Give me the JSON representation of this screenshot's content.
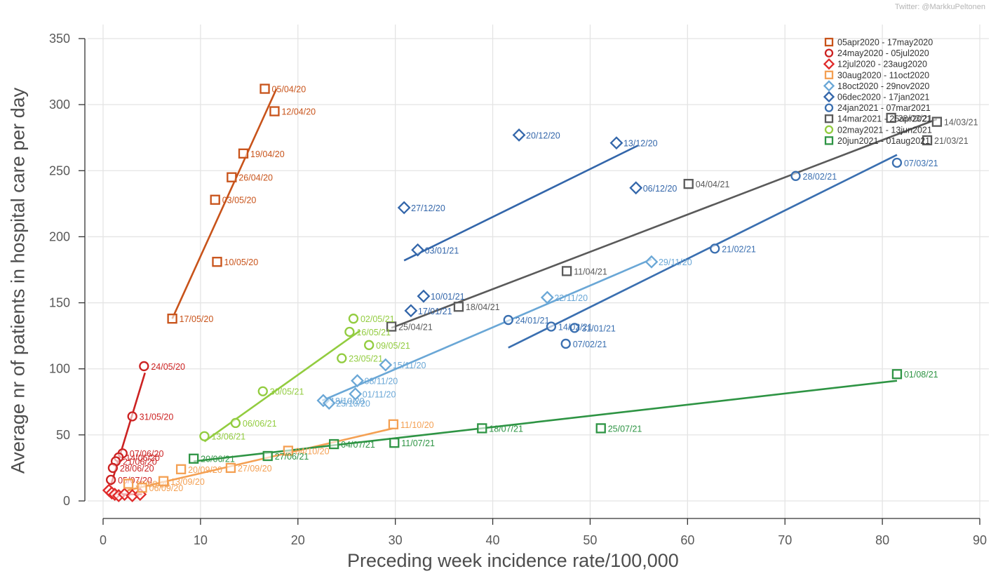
{
  "header": {
    "credit": "Twitter: @MarkkuPeltonen"
  },
  "chart_data": {
    "type": "scatter",
    "xlabel": "Preceding week incidence rate/100,000",
    "ylabel": "Average nr of patients in hospital care per day",
    "xlim": [
      0,
      90
    ],
    "ylim": [
      0,
      350
    ],
    "xticks": [
      0,
      10,
      20,
      30,
      40,
      50,
      60,
      70,
      80,
      90
    ],
    "yticks": [
      0,
      50,
      100,
      150,
      200,
      250,
      300,
      350
    ],
    "grid": true,
    "legend_position": "top-right",
    "series": [
      {
        "name": "05apr2020 - 17may2020",
        "marker": "square",
        "color": "#c8531a",
        "points": [
          {
            "x": 16.6,
            "y": 312,
            "label": "05/04/20"
          },
          {
            "x": 17.6,
            "y": 295,
            "label": "12/04/20"
          },
          {
            "x": 14.4,
            "y": 263,
            "label": "19/04/20"
          },
          {
            "x": 13.2,
            "y": 245,
            "label": "26/04/20"
          },
          {
            "x": 11.5,
            "y": 228,
            "label": "03/05/20"
          },
          {
            "x": 11.7,
            "y": 181,
            "label": "10/05/20"
          },
          {
            "x": 7.1,
            "y": 138,
            "label": "17/05/20"
          }
        ],
        "fit": [
          [
            7.1,
            138
          ],
          [
            17.8,
            312
          ]
        ]
      },
      {
        "name": "24may2020 - 05jul2020",
        "marker": "circle",
        "color": "#cc2222",
        "points": [
          {
            "x": 4.2,
            "y": 102,
            "label": "24/05/20"
          },
          {
            "x": 3.0,
            "y": 64,
            "label": "31/05/20"
          },
          {
            "x": 2.0,
            "y": 36,
            "label": "07/06/20"
          },
          {
            "x": 1.6,
            "y": 33,
            "label": "14/06/20"
          },
          {
            "x": 1.3,
            "y": 30,
            "label": "21/06/20"
          },
          {
            "x": 1.0,
            "y": 25,
            "label": "28/06/20"
          },
          {
            "x": 0.8,
            "y": 16,
            "label": "05/07/20"
          }
        ],
        "fit": [
          [
            0.8,
            12
          ],
          [
            4.3,
            97
          ]
        ]
      },
      {
        "name": "12jul2020 - 23aug2020",
        "marker": "diamond",
        "color": "#e02a2a",
        "points": [
          {
            "x": 0.6,
            "y": 8,
            "label": ""
          },
          {
            "x": 0.9,
            "y": 6,
            "label": ""
          },
          {
            "x": 1.2,
            "y": 5,
            "label": ""
          },
          {
            "x": 1.6,
            "y": 4,
            "label": ""
          },
          {
            "x": 2.2,
            "y": 5,
            "label": ""
          },
          {
            "x": 3.0,
            "y": 4,
            "label": ""
          },
          {
            "x": 3.8,
            "y": 5,
            "label": ""
          }
        ],
        "fit": [
          [
            0.5,
            5
          ],
          [
            4.0,
            5
          ]
        ]
      },
      {
        "name": "30aug2020 - 11oct2020",
        "marker": "square",
        "color": "#f4a053",
        "points": [
          {
            "x": 2.6,
            "y": 13,
            "label": "30/08/20"
          },
          {
            "x": 4.0,
            "y": 10,
            "label": "06/09/20"
          },
          {
            "x": 6.2,
            "y": 15,
            "label": "13/09/20"
          },
          {
            "x": 8.0,
            "y": 24,
            "label": "20/09/20"
          },
          {
            "x": 13.1,
            "y": 25,
            "label": "27/09/20"
          },
          {
            "x": 19.0,
            "y": 38,
            "label": "04/10/20"
          },
          {
            "x": 29.8,
            "y": 58,
            "label": "11/10/20"
          }
        ],
        "fit": [
          [
            2.5,
            8
          ],
          [
            29.8,
            55
          ]
        ]
      },
      {
        "name": "18oct2020 - 29nov2020",
        "marker": "diamond",
        "color": "#6aa7d6",
        "points": [
          {
            "x": 22.6,
            "y": 76,
            "label": "18/10/20"
          },
          {
            "x": 23.2,
            "y": 74,
            "label": "25/10/20"
          },
          {
            "x": 25.9,
            "y": 81,
            "label": "01/11/20"
          },
          {
            "x": 26.1,
            "y": 91,
            "label": "08/11/20"
          },
          {
            "x": 29.0,
            "y": 103,
            "label": "15/11/20"
          },
          {
            "x": 45.6,
            "y": 154,
            "label": "22/11/20"
          },
          {
            "x": 56.3,
            "y": 181,
            "label": "29/11/20"
          }
        ],
        "fit": [
          [
            22.5,
            76
          ],
          [
            56.3,
            183
          ]
        ]
      },
      {
        "name": "06dec2020 - 17jan2021",
        "marker": "diamond",
        "color": "#3366aa",
        "points": [
          {
            "x": 54.7,
            "y": 237,
            "label": "06/12/20"
          },
          {
            "x": 52.7,
            "y": 271,
            "label": "13/12/20"
          },
          {
            "x": 42.7,
            "y": 277,
            "label": "20/12/20"
          },
          {
            "x": 30.9,
            "y": 222,
            "label": "27/12/20"
          },
          {
            "x": 32.3,
            "y": 190,
            "label": "03/01/21"
          },
          {
            "x": 32.9,
            "y": 155,
            "label": "10/01/21"
          },
          {
            "x": 31.6,
            "y": 144,
            "label": "17/01/21"
          }
        ],
        "fit": [
          [
            30.9,
            182
          ],
          [
            54.9,
            269
          ]
        ]
      },
      {
        "name": "24jan2021 - 07mar2021",
        "marker": "circle",
        "color": "#3a6fb0",
        "points": [
          {
            "x": 41.6,
            "y": 137,
            "label": "24/01/21"
          },
          {
            "x": 48.4,
            "y": 131,
            "label": "31/01/21"
          },
          {
            "x": 47.5,
            "y": 119,
            "label": "07/02/21"
          },
          {
            "x": 46.0,
            "y": 132,
            "label": "14/02/21"
          },
          {
            "x": 62.8,
            "y": 191,
            "label": "21/02/21"
          },
          {
            "x": 71.1,
            "y": 246,
            "label": "28/02/21"
          },
          {
            "x": 81.5,
            "y": 256,
            "label": "07/03/21"
          }
        ],
        "fit": [
          [
            41.6,
            116
          ],
          [
            81.5,
            262
          ]
        ]
      },
      {
        "name": "14mar2021 - 25apr2021",
        "marker": "square",
        "color": "#5a5a5a",
        "points": [
          {
            "x": 85.6,
            "y": 287,
            "label": "14/03/21"
          },
          {
            "x": 84.6,
            "y": 273,
            "label": "21/03/21"
          },
          {
            "x": 80.9,
            "y": 290,
            "label": "28/03/21"
          },
          {
            "x": 60.1,
            "y": 240,
            "label": "04/04/21"
          },
          {
            "x": 47.6,
            "y": 174,
            "label": "11/04/21"
          },
          {
            "x": 36.5,
            "y": 147,
            "label": "18/04/21"
          },
          {
            "x": 29.6,
            "y": 132,
            "label": "25/04/21"
          }
        ],
        "fit": [
          [
            29.6,
            131
          ],
          [
            85.6,
            289
          ]
        ]
      },
      {
        "name": "02may2021 - 13jun2021",
        "marker": "circle",
        "color": "#92cc3f",
        "points": [
          {
            "x": 25.7,
            "y": 138,
            "label": "02/05/21"
          },
          {
            "x": 27.3,
            "y": 118,
            "label": "09/05/21"
          },
          {
            "x": 25.3,
            "y": 128,
            "label": "16/05/21"
          },
          {
            "x": 24.5,
            "y": 108,
            "label": "23/05/21"
          },
          {
            "x": 16.4,
            "y": 83,
            "label": "30/05/21"
          },
          {
            "x": 13.6,
            "y": 59,
            "label": "06/06/21"
          },
          {
            "x": 10.4,
            "y": 49,
            "label": "13/06/21"
          }
        ],
        "fit": [
          [
            10.4,
            45
          ],
          [
            26.4,
            129
          ]
        ]
      },
      {
        "name": "20jun2021 - 01aug2021",
        "marker": "square",
        "color": "#2e9444",
        "points": [
          {
            "x": 9.3,
            "y": 32,
            "label": "20/06/21"
          },
          {
            "x": 16.9,
            "y": 34,
            "label": "27/06/21"
          },
          {
            "x": 23.7,
            "y": 43,
            "label": "04/07/21"
          },
          {
            "x": 29.9,
            "y": 44,
            "label": "11/07/21"
          },
          {
            "x": 38.9,
            "y": 55,
            "label": "18/07/21"
          },
          {
            "x": 51.1,
            "y": 55,
            "label": "25/07/21"
          },
          {
            "x": 81.5,
            "y": 96,
            "label": "01/08/21"
          }
        ],
        "fit": [
          [
            9.3,
            30
          ],
          [
            81.5,
            91
          ]
        ]
      }
    ]
  }
}
